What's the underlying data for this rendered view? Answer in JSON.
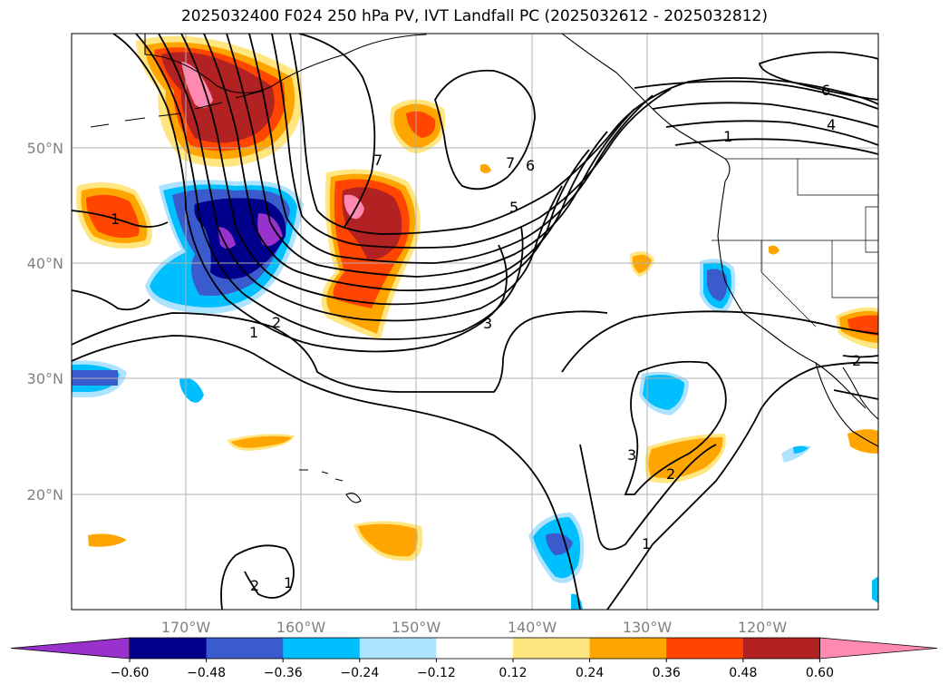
{
  "title": "2025032400 F024 250 hPa PV, IVT Landfall PC (2025032612 - 2025032812)",
  "axes": {
    "lat_labels": [
      "50°N",
      "40°N",
      "30°N",
      "20°N"
    ],
    "lon_labels": [
      "170°W",
      "160°W",
      "150°W",
      "140°W",
      "130°W",
      "120°W"
    ]
  },
  "colorbar": {
    "ticks": [
      "−0.60",
      "−0.48",
      "−0.36",
      "−0.24",
      "−0.12",
      "0.12",
      "0.24",
      "0.36",
      "0.48",
      "0.60"
    ],
    "colors": [
      "#9932CC",
      "#00008B",
      "#3A5BCB",
      "#00BFFF",
      "#ADE3FF",
      "#FFFFFF",
      "#FFE680",
      "#FFA500",
      "#FF4500",
      "#B22222",
      "#FF89B0"
    ]
  },
  "contour_labels": [
    "1",
    "2",
    "3",
    "4",
    "5",
    "6",
    "7"
  ]
}
